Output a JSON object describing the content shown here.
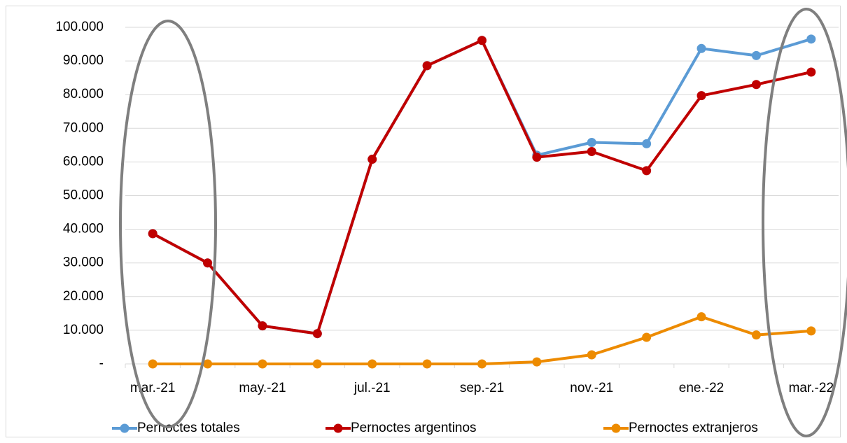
{
  "chart_data": {
    "type": "line",
    "categories": [
      "mar.-21",
      null,
      "may.-21",
      null,
      "jul.-21",
      null,
      "sep.-21",
      null,
      "nov.-21",
      null,
      "ene.-22",
      null,
      "mar.-22"
    ],
    "series": [
      {
        "name": "Pernoctes totales",
        "color": "#5b9bd5",
        "values": [
          38700,
          30000,
          11300,
          9000,
          60800,
          88600,
          96100,
          62000,
          65800,
          65400,
          93700,
          91600,
          96500
        ]
      },
      {
        "name": "Pernoctes argentinos",
        "color": "#c00000",
        "values": [
          38700,
          30000,
          11300,
          9000,
          60800,
          88600,
          96100,
          61400,
          63100,
          57400,
          79700,
          83000,
          86700
        ]
      },
      {
        "name": "Pernoctes extranjeros",
        "color": "#ed8b00",
        "values": [
          0,
          0,
          0,
          0,
          0,
          0,
          0,
          600,
          2700,
          7900,
          14000,
          8600,
          9800
        ]
      }
    ],
    "ylim": [
      0,
      100000
    ],
    "yticks": [
      {
        "value": 0,
        "label": "-"
      },
      {
        "value": 10000,
        "label": "10.000"
      },
      {
        "value": 20000,
        "label": "20.000"
      },
      {
        "value": 30000,
        "label": "30.000"
      },
      {
        "value": 40000,
        "label": "40.000"
      },
      {
        "value": 50000,
        "label": "50.000"
      },
      {
        "value": 60000,
        "label": "60.000"
      },
      {
        "value": 70000,
        "label": "70.000"
      },
      {
        "value": 80000,
        "label": "80.000"
      },
      {
        "value": 90000,
        "label": "90.000"
      },
      {
        "value": 100000,
        "label": "100.000"
      }
    ],
    "grid": true,
    "legend": "bottom"
  }
}
